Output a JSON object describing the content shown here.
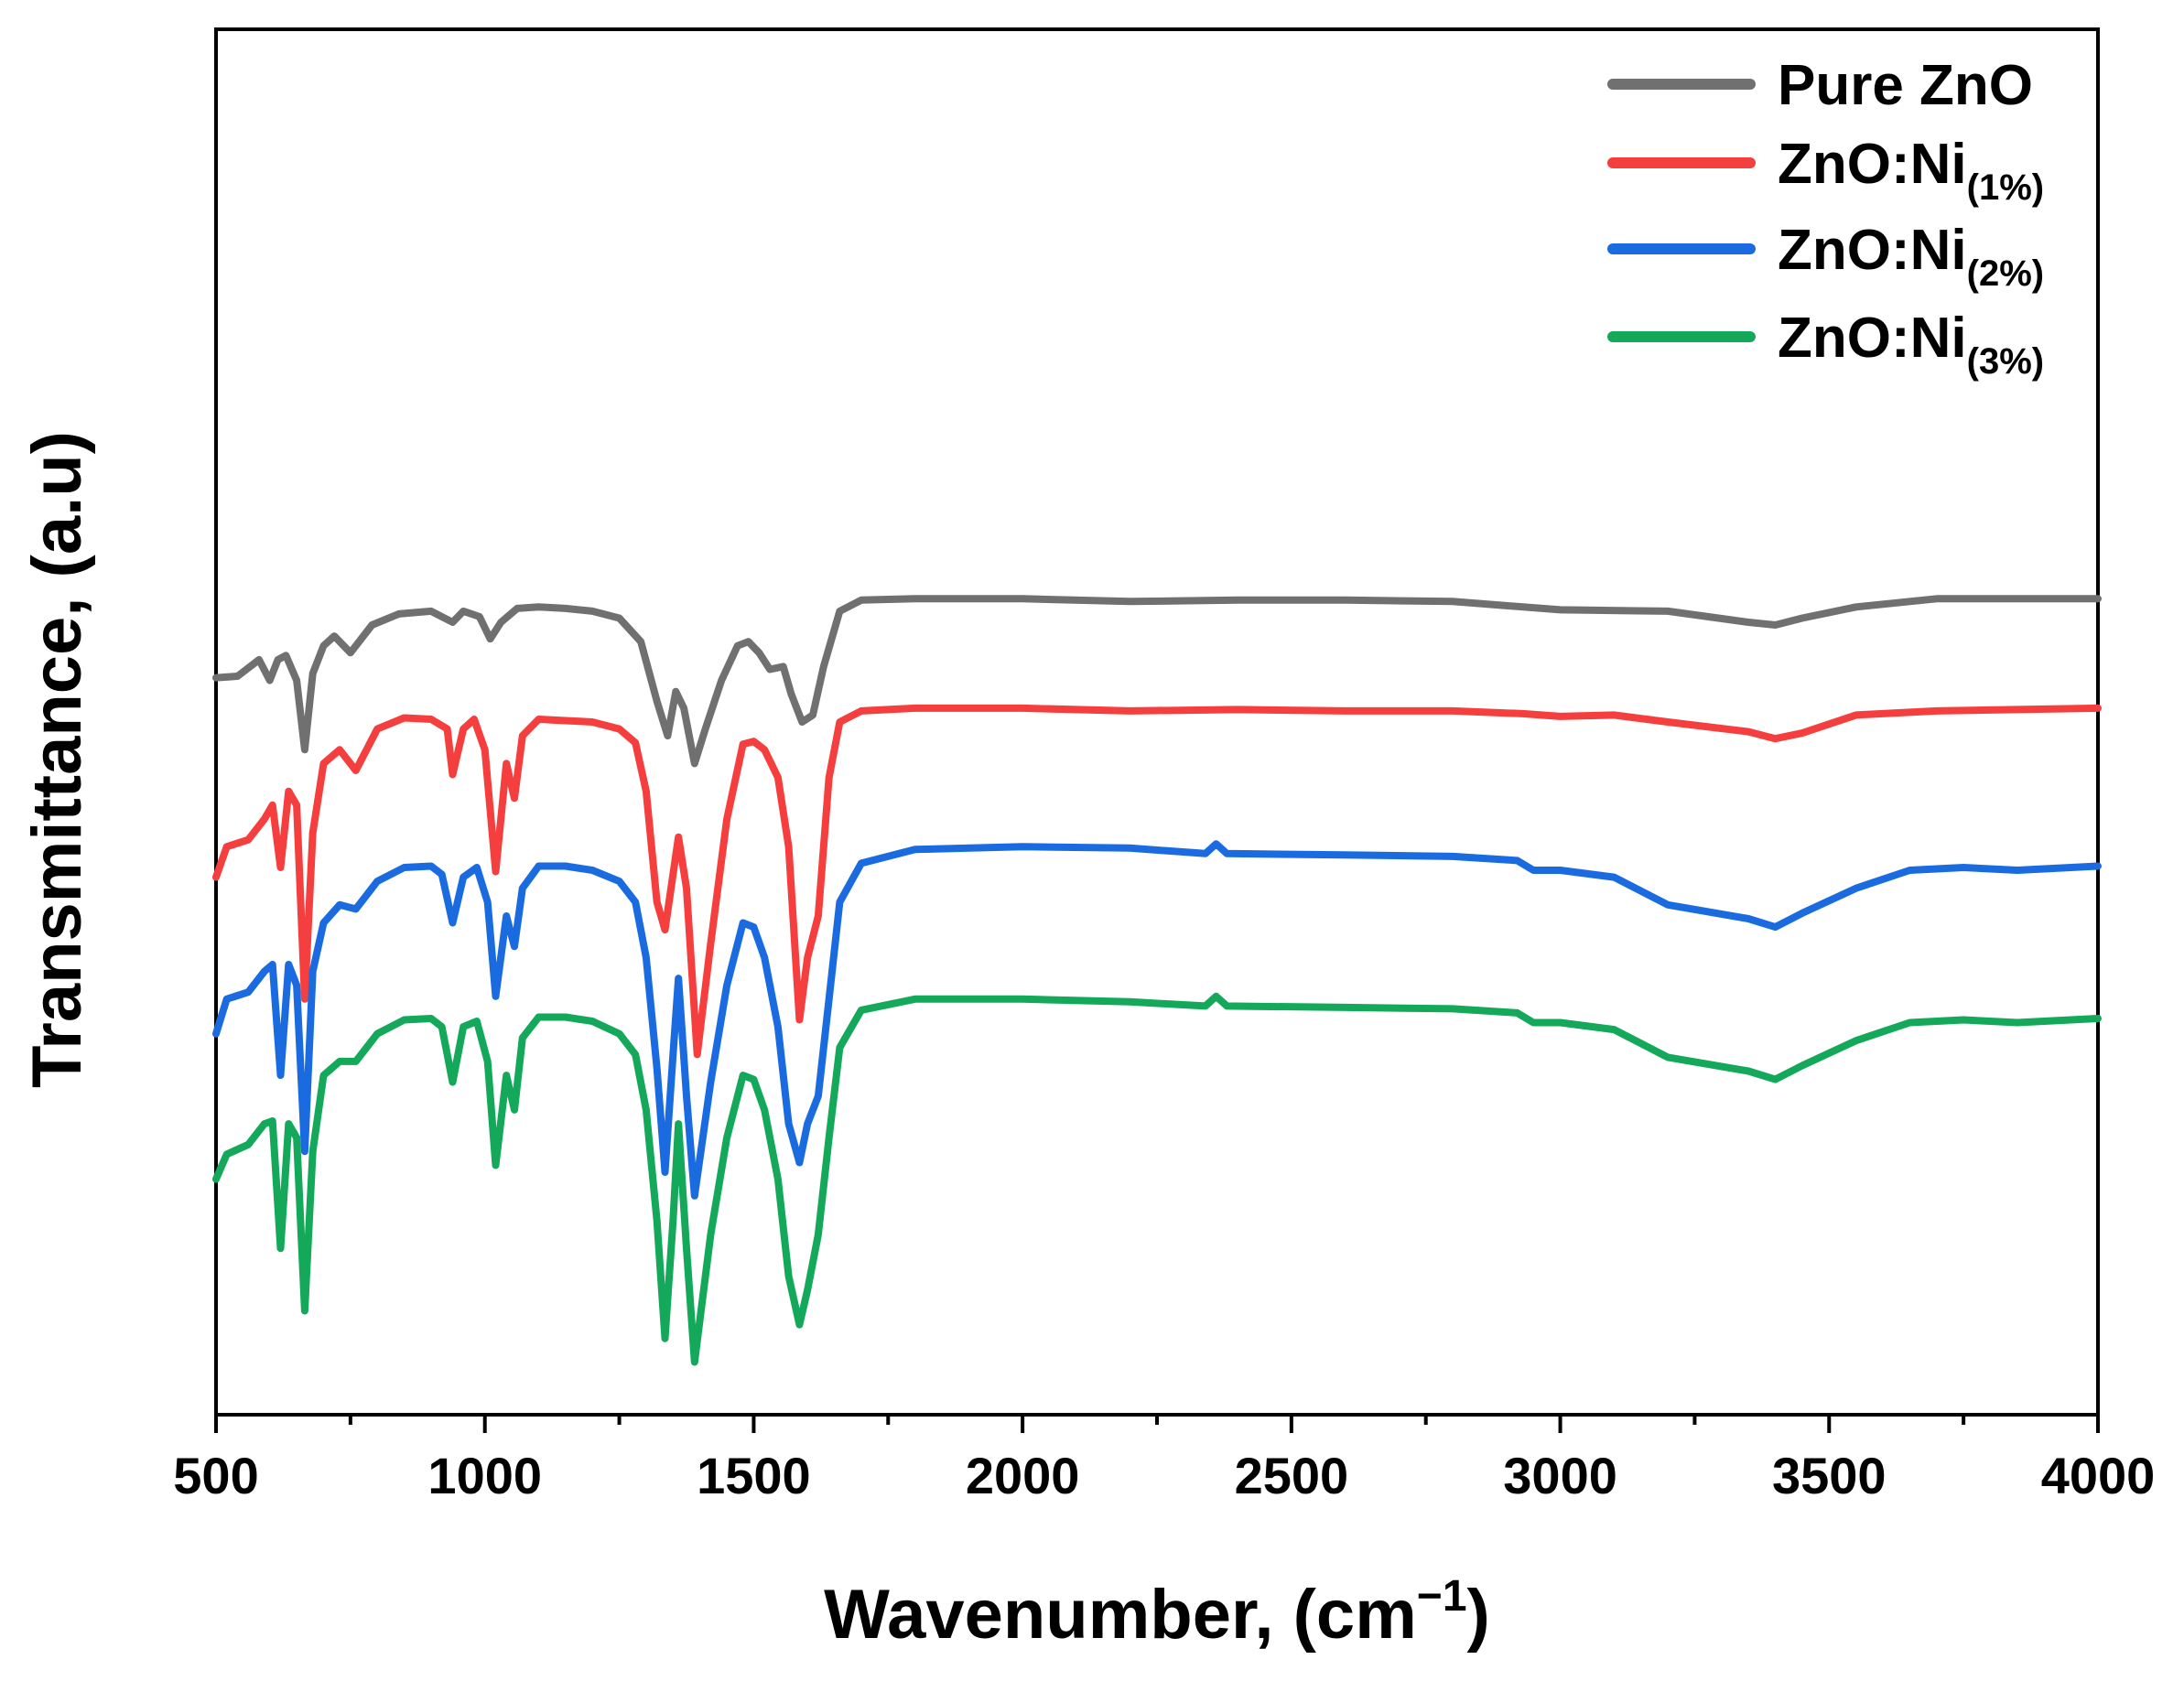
{
  "chart_data": {
    "type": "line",
    "title": "",
    "xlabel": "Wavenumber, (cm",
    "xlabel_sup": "−1",
    "xlabel_close": ")",
    "ylabel": "Transmittance, (a.u)",
    "xlim": [
      500,
      4000
    ],
    "ylim": [
      0,
      10
    ],
    "xticks": [
      500,
      1000,
      1500,
      2000,
      2500,
      3000,
      3500,
      4000
    ],
    "yticks_shown": false,
    "grid": false,
    "legend_position": "top-right",
    "series": [
      {
        "name": "Pure ZnO",
        "legend_main": "Pure ZnO",
        "legend_sub": "",
        "color": "#707070",
        "points": [
          [
            500,
            5.32
          ],
          [
            540,
            5.33
          ],
          [
            580,
            5.45
          ],
          [
            600,
            5.3
          ],
          [
            615,
            5.45
          ],
          [
            630,
            5.48
          ],
          [
            650,
            5.3
          ],
          [
            665,
            4.8
          ],
          [
            680,
            5.35
          ],
          [
            700,
            5.55
          ],
          [
            720,
            5.62
          ],
          [
            750,
            5.5
          ],
          [
            790,
            5.7
          ],
          [
            840,
            5.78
          ],
          [
            900,
            5.8
          ],
          [
            940,
            5.72
          ],
          [
            960,
            5.8
          ],
          [
            990,
            5.76
          ],
          [
            1010,
            5.6
          ],
          [
            1030,
            5.72
          ],
          [
            1060,
            5.82
          ],
          [
            1100,
            5.83
          ],
          [
            1150,
            5.82
          ],
          [
            1200,
            5.8
          ],
          [
            1250,
            5.75
          ],
          [
            1290,
            5.58
          ],
          [
            1320,
            5.15
          ],
          [
            1340,
            4.9
          ],
          [
            1355,
            5.22
          ],
          [
            1370,
            5.1
          ],
          [
            1390,
            4.7
          ],
          [
            1410,
            4.95
          ],
          [
            1440,
            5.3
          ],
          [
            1470,
            5.55
          ],
          [
            1490,
            5.58
          ],
          [
            1510,
            5.5
          ],
          [
            1530,
            5.38
          ],
          [
            1555,
            5.4
          ],
          [
            1570,
            5.2
          ],
          [
            1590,
            5.0
          ],
          [
            1610,
            5.05
          ],
          [
            1630,
            5.4
          ],
          [
            1660,
            5.8
          ],
          [
            1700,
            5.88
          ],
          [
            1800,
            5.89
          ],
          [
            2000,
            5.89
          ],
          [
            2200,
            5.87
          ],
          [
            2400,
            5.88
          ],
          [
            2600,
            5.88
          ],
          [
            2800,
            5.87
          ],
          [
            3000,
            5.81
          ],
          [
            3200,
            5.8
          ],
          [
            3350,
            5.72
          ],
          [
            3400,
            5.7
          ],
          [
            3450,
            5.75
          ],
          [
            3550,
            5.83
          ],
          [
            3700,
            5.89
          ],
          [
            3850,
            5.89
          ],
          [
            4000,
            5.89
          ]
        ]
      },
      {
        "name": "ZnO:Ni(1%)",
        "legend_main": "ZnO:Ni",
        "legend_sub": "(1%)",
        "color": "#f53e3e",
        "points": [
          [
            500,
            3.88
          ],
          [
            520,
            4.1
          ],
          [
            560,
            4.15
          ],
          [
            590,
            4.3
          ],
          [
            605,
            4.4
          ],
          [
            620,
            3.95
          ],
          [
            635,
            4.5
          ],
          [
            650,
            4.4
          ],
          [
            665,
            3.0
          ],
          [
            680,
            4.2
          ],
          [
            700,
            4.7
          ],
          [
            730,
            4.8
          ],
          [
            760,
            4.65
          ],
          [
            800,
            4.95
          ],
          [
            850,
            5.03
          ],
          [
            900,
            5.02
          ],
          [
            930,
            4.95
          ],
          [
            940,
            4.62
          ],
          [
            960,
            4.95
          ],
          [
            980,
            5.02
          ],
          [
            1000,
            4.8
          ],
          [
            1020,
            3.92
          ],
          [
            1040,
            4.7
          ],
          [
            1055,
            4.45
          ],
          [
            1070,
            4.9
          ],
          [
            1100,
            5.02
          ],
          [
            1150,
            5.01
          ],
          [
            1200,
            5.0
          ],
          [
            1250,
            4.95
          ],
          [
            1280,
            4.85
          ],
          [
            1300,
            4.5
          ],
          [
            1320,
            3.7
          ],
          [
            1335,
            3.5
          ],
          [
            1350,
            3.9
          ],
          [
            1360,
            4.17
          ],
          [
            1375,
            3.8
          ],
          [
            1395,
            2.6
          ],
          [
            1420,
            3.4
          ],
          [
            1450,
            4.3
          ],
          [
            1480,
            4.84
          ],
          [
            1500,
            4.86
          ],
          [
            1520,
            4.8
          ],
          [
            1545,
            4.6
          ],
          [
            1565,
            4.1
          ],
          [
            1585,
            2.85
          ],
          [
            1600,
            3.3
          ],
          [
            1620,
            3.6
          ],
          [
            1640,
            4.6
          ],
          [
            1660,
            5.0
          ],
          [
            1700,
            5.08
          ],
          [
            1800,
            5.1
          ],
          [
            2000,
            5.1
          ],
          [
            2200,
            5.08
          ],
          [
            2400,
            5.09
          ],
          [
            2600,
            5.08
          ],
          [
            2800,
            5.08
          ],
          [
            2930,
            5.06
          ],
          [
            3000,
            5.04
          ],
          [
            3100,
            5.05
          ],
          [
            3200,
            5.0
          ],
          [
            3350,
            4.93
          ],
          [
            3400,
            4.88
          ],
          [
            3450,
            4.92
          ],
          [
            3550,
            5.05
          ],
          [
            3700,
            5.08
          ],
          [
            3850,
            5.09
          ],
          [
            4000,
            5.1
          ]
        ]
      },
      {
        "name": "ZnO:Ni(2%)",
        "legend_main": "ZnO:Ni",
        "legend_sub": "(2%)",
        "color": "#1b6be0",
        "points": [
          [
            500,
            2.75
          ],
          [
            520,
            3.0
          ],
          [
            560,
            3.05
          ],
          [
            590,
            3.2
          ],
          [
            605,
            3.25
          ],
          [
            620,
            2.45
          ],
          [
            635,
            3.25
          ],
          [
            650,
            3.1
          ],
          [
            665,
            1.9
          ],
          [
            680,
            3.2
          ],
          [
            700,
            3.55
          ],
          [
            730,
            3.68
          ],
          [
            760,
            3.65
          ],
          [
            800,
            3.85
          ],
          [
            850,
            3.95
          ],
          [
            900,
            3.96
          ],
          [
            920,
            3.9
          ],
          [
            940,
            3.55
          ],
          [
            960,
            3.88
          ],
          [
            985,
            3.95
          ],
          [
            1005,
            3.7
          ],
          [
            1020,
            3.02
          ],
          [
            1040,
            3.6
          ],
          [
            1055,
            3.38
          ],
          [
            1070,
            3.8
          ],
          [
            1100,
            3.96
          ],
          [
            1150,
            3.96
          ],
          [
            1200,
            3.93
          ],
          [
            1250,
            3.85
          ],
          [
            1280,
            3.7
          ],
          [
            1300,
            3.3
          ],
          [
            1320,
            2.5
          ],
          [
            1335,
            1.75
          ],
          [
            1350,
            2.6
          ],
          [
            1360,
            3.15
          ],
          [
            1375,
            2.3
          ],
          [
            1390,
            1.58
          ],
          [
            1420,
            2.4
          ],
          [
            1450,
            3.1
          ],
          [
            1480,
            3.55
          ],
          [
            1500,
            3.52
          ],
          [
            1520,
            3.3
          ],
          [
            1545,
            2.8
          ],
          [
            1565,
            2.1
          ],
          [
            1585,
            1.82
          ],
          [
            1600,
            2.1
          ],
          [
            1620,
            2.3
          ],
          [
            1640,
            3.0
          ],
          [
            1660,
            3.7
          ],
          [
            1700,
            3.98
          ],
          [
            1800,
            4.08
          ],
          [
            2000,
            4.1
          ],
          [
            2200,
            4.09
          ],
          [
            2340,
            4.05
          ],
          [
            2360,
            4.12
          ],
          [
            2380,
            4.05
          ],
          [
            2600,
            4.04
          ],
          [
            2800,
            4.03
          ],
          [
            2920,
            4.0
          ],
          [
            2950,
            3.93
          ],
          [
            3000,
            3.93
          ],
          [
            3100,
            3.88
          ],
          [
            3200,
            3.68
          ],
          [
            3350,
            3.58
          ],
          [
            3400,
            3.52
          ],
          [
            3450,
            3.62
          ],
          [
            3550,
            3.8
          ],
          [
            3650,
            3.93
          ],
          [
            3750,
            3.95
          ],
          [
            3850,
            3.93
          ],
          [
            4000,
            3.96
          ]
        ]
      },
      {
        "name": "ZnO:Ni(3%)",
        "legend_main": "ZnO:Ni",
        "legend_sub": "(3%)",
        "color": "#14a85a",
        "points": [
          [
            500,
            1.7
          ],
          [
            520,
            1.88
          ],
          [
            560,
            1.95
          ],
          [
            590,
            2.1
          ],
          [
            605,
            2.12
          ],
          [
            620,
            1.2
          ],
          [
            635,
            2.1
          ],
          [
            650,
            2.0
          ],
          [
            665,
            0.75
          ],
          [
            680,
            1.9
          ],
          [
            700,
            2.45
          ],
          [
            730,
            2.55
          ],
          [
            760,
            2.55
          ],
          [
            800,
            2.75
          ],
          [
            850,
            2.85
          ],
          [
            900,
            2.86
          ],
          [
            920,
            2.8
          ],
          [
            940,
            2.4
          ],
          [
            960,
            2.8
          ],
          [
            985,
            2.84
          ],
          [
            1005,
            2.55
          ],
          [
            1020,
            1.8
          ],
          [
            1040,
            2.45
          ],
          [
            1055,
            2.2
          ],
          [
            1070,
            2.72
          ],
          [
            1100,
            2.87
          ],
          [
            1150,
            2.87
          ],
          [
            1200,
            2.84
          ],
          [
            1250,
            2.75
          ],
          [
            1280,
            2.6
          ],
          [
            1300,
            2.2
          ],
          [
            1320,
            1.4
          ],
          [
            1335,
            0.55
          ],
          [
            1350,
            1.4
          ],
          [
            1360,
            2.1
          ],
          [
            1375,
            1.2
          ],
          [
            1390,
            0.38
          ],
          [
            1420,
            1.3
          ],
          [
            1450,
            2.0
          ],
          [
            1480,
            2.45
          ],
          [
            1500,
            2.42
          ],
          [
            1520,
            2.2
          ],
          [
            1545,
            1.7
          ],
          [
            1565,
            1.0
          ],
          [
            1585,
            0.65
          ],
          [
            1600,
            0.9
          ],
          [
            1620,
            1.3
          ],
          [
            1640,
            2.0
          ],
          [
            1660,
            2.65
          ],
          [
            1700,
            2.92
          ],
          [
            1800,
            3.0
          ],
          [
            2000,
            3.0
          ],
          [
            2200,
            2.98
          ],
          [
            2340,
            2.95
          ],
          [
            2360,
            3.02
          ],
          [
            2380,
            2.95
          ],
          [
            2600,
            2.94
          ],
          [
            2800,
            2.93
          ],
          [
            2920,
            2.9
          ],
          [
            2950,
            2.83
          ],
          [
            3000,
            2.83
          ],
          [
            3100,
            2.78
          ],
          [
            3200,
            2.58
          ],
          [
            3350,
            2.48
          ],
          [
            3400,
            2.42
          ],
          [
            3450,
            2.52
          ],
          [
            3550,
            2.7
          ],
          [
            3650,
            2.83
          ],
          [
            3750,
            2.85
          ],
          [
            3850,
            2.83
          ],
          [
            4000,
            2.86
          ]
        ]
      }
    ]
  }
}
